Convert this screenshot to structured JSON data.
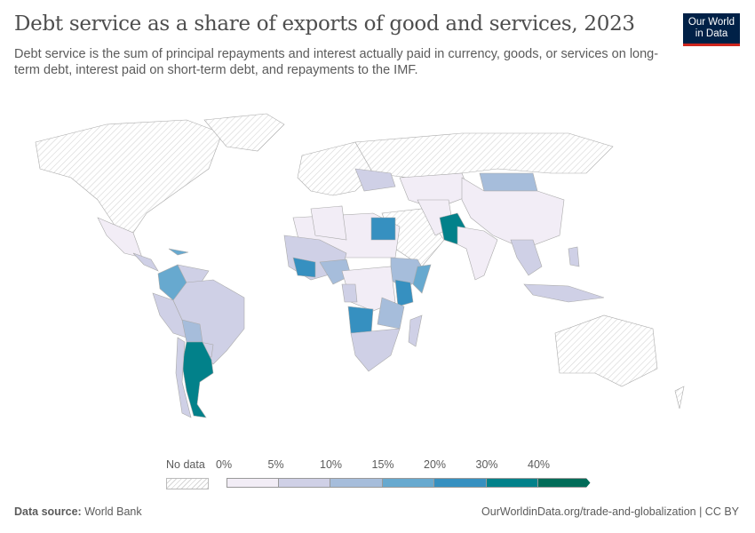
{
  "header": {
    "title": "Debt service as a share of exports of good and services, 2023",
    "subtitle": "Debt service is the sum of principal repayments and interest actually paid in currency, goods, or services on long-term debt, interest paid on short-term debt, and repayments to the IMF.",
    "logo_line1": "Our World",
    "logo_line2": "in Data"
  },
  "legend": {
    "no_data_label": "No data",
    "no_data_color": "#e0e0e0",
    "bins": [
      {
        "label": "0%",
        "color": "#f2edf6"
      },
      {
        "label": "5%",
        "color": "#cfd0e6"
      },
      {
        "label": "10%",
        "color": "#a6bddb"
      },
      {
        "label": "15%",
        "color": "#67a9cf"
      },
      {
        "label": "20%",
        "color": "#3690c0"
      },
      {
        "label": "30%",
        "color": "#02818a"
      },
      {
        "label": "40%",
        "color": "#016c59"
      }
    ]
  },
  "footer": {
    "source_label": "Data source:",
    "source": "World Bank",
    "url": "OurWorldinData.org/trade-and-globalization | CC BY"
  }
}
